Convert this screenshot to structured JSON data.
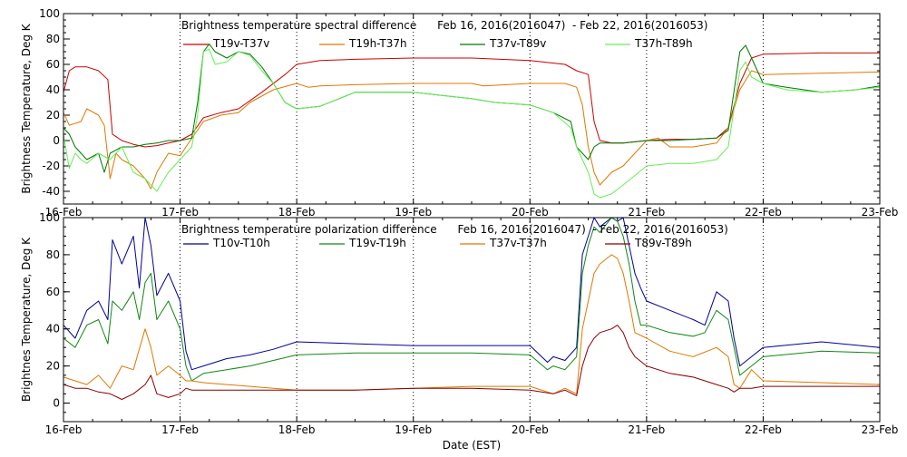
{
  "x_axis_label": "Date (EST)",
  "chart_data": [
    {
      "type": "line",
      "title": "Brightness temperature spectral difference      Feb 16, 2016(2016047)  - Feb 22, 2016(2016053)",
      "ylabel": "Brightness Temperature, Deg K",
      "xlabel": "Date (EST)",
      "xlim": [
        0,
        7
      ],
      "ylim": [
        -50,
        100
      ],
      "yticks": [
        -40,
        -20,
        0,
        20,
        40,
        60,
        80,
        100
      ],
      "x_tick_labels": [
        "16-Feb",
        "17-Feb",
        "18-Feb",
        "19-Feb",
        "20-Feb",
        "21-Feb",
        "22-Feb",
        "23-Feb"
      ],
      "grid": true,
      "legend_location": "top",
      "series": [
        {
          "name": "T19v-T37v",
          "color": "#cc0000",
          "x": [
            0,
            0.05,
            0.1,
            0.2,
            0.3,
            0.38,
            0.42,
            0.5,
            0.6,
            0.7,
            0.8,
            0.9,
            1.0,
            1.1,
            1.2,
            1.35,
            1.5,
            1.7,
            1.9,
            2.0,
            2.2,
            2.5,
            3.0,
            3.5,
            4.0,
            4.3,
            4.4,
            4.5,
            4.55,
            4.6,
            4.7,
            4.8,
            5.0,
            5.2,
            5.4,
            5.6,
            5.7,
            5.8,
            5.9,
            6.0,
            6.5,
            7.0
          ],
          "y": [
            38,
            55,
            58,
            58,
            55,
            48,
            5,
            0,
            -3,
            -5,
            -4,
            -2,
            0,
            5,
            18,
            22,
            25,
            38,
            52,
            60,
            63,
            64,
            65,
            65,
            63,
            60,
            55,
            52,
            15,
            0,
            -2,
            -2,
            0,
            1,
            1,
            2,
            10,
            45,
            65,
            68,
            69,
            69
          ]
        },
        {
          "name": "T19h-T37h",
          "color": "#e07800",
          "x": [
            0,
            0.05,
            0.15,
            0.2,
            0.3,
            0.35,
            0.4,
            0.45,
            0.5,
            0.6,
            0.7,
            0.75,
            0.8,
            0.9,
            1.0,
            1.05,
            1.2,
            1.35,
            1.5,
            1.6,
            1.8,
            2.0,
            2.1,
            2.2,
            2.5,
            3.0,
            3.5,
            3.6,
            4.0,
            4.3,
            4.4,
            4.45,
            4.5,
            4.55,
            4.6,
            4.7,
            4.8,
            5.0,
            5.1,
            5.2,
            5.4,
            5.6,
            5.7,
            5.8,
            5.9,
            6.0,
            6.5,
            7.0
          ],
          "y": [
            22,
            12,
            15,
            25,
            20,
            12,
            -30,
            -10,
            -15,
            -20,
            -30,
            -38,
            -25,
            -10,
            -12,
            -5,
            15,
            20,
            22,
            30,
            40,
            45,
            42,
            43,
            44,
            45,
            45,
            43,
            45,
            45,
            42,
            28,
            -5,
            -25,
            -35,
            -25,
            -20,
            0,
            2,
            -5,
            -5,
            -2,
            10,
            40,
            55,
            52,
            53,
            54
          ]
        },
        {
          "name": "T37v-T89v",
          "color": "#007700",
          "x": [
            0,
            0.05,
            0.1,
            0.15,
            0.2,
            0.3,
            0.35,
            0.4,
            0.5,
            0.6,
            0.7,
            0.8,
            0.9,
            1.0,
            1.1,
            1.15,
            1.2,
            1.25,
            1.3,
            1.4,
            1.5,
            1.6,
            1.7,
            1.8,
            1.9,
            2.0,
            2.2,
            2.5,
            3.0,
            3.5,
            3.7,
            4.0,
            4.2,
            4.35,
            4.4,
            4.45,
            4.5,
            4.55,
            4.6,
            4.8,
            5.0,
            5.2,
            5.4,
            5.6,
            5.7,
            5.8,
            5.85,
            5.9,
            6.0,
            6.2,
            6.5,
            6.8,
            7.0
          ],
          "y": [
            10,
            5,
            -5,
            -10,
            -15,
            -10,
            -25,
            -10,
            -5,
            -5,
            -3,
            -2,
            0,
            0,
            2,
            30,
            70,
            76,
            70,
            65,
            70,
            68,
            58,
            45,
            30,
            25,
            27,
            38,
            38,
            33,
            30,
            28,
            22,
            15,
            -5,
            -10,
            -15,
            -5,
            -2,
            -2,
            0,
            0,
            1,
            2,
            8,
            70,
            75,
            65,
            45,
            42,
            38,
            40,
            43
          ]
        },
        {
          "name": "T37h-T89h",
          "color": "#66ee55",
          "x": [
            0,
            0.05,
            0.1,
            0.15,
            0.2,
            0.3,
            0.4,
            0.5,
            0.6,
            0.7,
            0.8,
            0.9,
            1.0,
            1.1,
            1.15,
            1.2,
            1.25,
            1.3,
            1.4,
            1.5,
            1.6,
            1.7,
            1.8,
            1.9,
            2.0,
            2.2,
            2.5,
            3.0,
            3.5,
            3.7,
            4.0,
            4.2,
            4.35,
            4.4,
            4.45,
            4.5,
            4.55,
            4.6,
            4.7,
            4.8,
            5.0,
            5.2,
            5.4,
            5.6,
            5.7,
            5.8,
            5.85,
            5.9,
            6.0,
            6.2,
            6.5,
            6.8,
            7.0
          ],
          "y": [
            5,
            -22,
            -10,
            -15,
            -18,
            -10,
            -15,
            -5,
            -25,
            -30,
            -40,
            -25,
            -15,
            -5,
            20,
            70,
            72,
            60,
            62,
            70,
            67,
            55,
            45,
            30,
            25,
            27,
            38,
            38,
            33,
            30,
            28,
            22,
            10,
            -5,
            -15,
            -25,
            -42,
            -45,
            -42,
            -35,
            -20,
            -18,
            -18,
            -15,
            -5,
            55,
            62,
            50,
            45,
            40,
            38,
            40,
            42
          ]
        }
      ]
    },
    {
      "type": "line",
      "title": "Brightness temperature polarization difference      Feb 16, 2016(2016047)  - Feb 22, 2016(2016053)",
      "ylabel": "Brightnes Temperature, Deg K",
      "xlabel": "Date (EST)",
      "xlim": [
        0,
        7
      ],
      "ylim": [
        -10,
        100
      ],
      "yticks": [
        0,
        20,
        40,
        60,
        80,
        100
      ],
      "x_tick_labels": [
        "16-Feb",
        "17-Feb",
        "18-Feb",
        "19-Feb",
        "20-Feb",
        "21-Feb",
        "22-Feb",
        "23-Feb"
      ],
      "grid": true,
      "legend_location": "top",
      "series": [
        {
          "name": "T10v-T10h",
          "color": "#000099",
          "x": [
            0,
            0.1,
            0.2,
            0.3,
            0.38,
            0.42,
            0.5,
            0.6,
            0.65,
            0.7,
            0.75,
            0.8,
            0.9,
            1.0,
            1.05,
            1.1,
            1.2,
            1.4,
            1.6,
            1.8,
            2.0,
            2.5,
            3.0,
            3.5,
            4.0,
            4.15,
            4.2,
            4.3,
            4.4,
            4.45,
            4.5,
            4.55,
            4.6,
            4.7,
            4.75,
            4.8,
            4.85,
            4.9,
            4.95,
            5.0,
            5.2,
            5.4,
            5.5,
            5.6,
            5.7,
            5.75,
            5.8,
            5.9,
            6.0,
            6.5,
            7.0
          ],
          "y": [
            42,
            35,
            50,
            55,
            45,
            88,
            75,
            90,
            62,
            100,
            85,
            58,
            70,
            55,
            28,
            18,
            20,
            24,
            26,
            29,
            33,
            32,
            31,
            31,
            31,
            22,
            25,
            23,
            30,
            80,
            90,
            100,
            95,
            100,
            98,
            100,
            85,
            70,
            62,
            55,
            50,
            45,
            42,
            60,
            55,
            35,
            20,
            25,
            30,
            33,
            30
          ]
        },
        {
          "name": "T19v-T19h",
          "color": "#118811",
          "x": [
            0,
            0.1,
            0.2,
            0.3,
            0.38,
            0.42,
            0.5,
            0.6,
            0.65,
            0.7,
            0.75,
            0.8,
            0.9,
            1.0,
            1.05,
            1.1,
            1.2,
            1.4,
            1.6,
            1.8,
            2.0,
            2.5,
            3.0,
            3.5,
            4.0,
            4.15,
            4.2,
            4.3,
            4.4,
            4.45,
            4.5,
            4.55,
            4.6,
            4.7,
            4.75,
            4.8,
            4.85,
            4.9,
            4.95,
            5.0,
            5.2,
            5.4,
            5.5,
            5.6,
            5.7,
            5.75,
            5.8,
            5.9,
            6.0,
            6.5,
            7.0
          ],
          "y": [
            35,
            30,
            42,
            45,
            32,
            55,
            50,
            60,
            45,
            65,
            70,
            45,
            55,
            40,
            20,
            12,
            16,
            18,
            20,
            23,
            26,
            27,
            27,
            27,
            26,
            18,
            20,
            18,
            25,
            70,
            85,
            95,
            92,
            100,
            98,
            90,
            75,
            55,
            42,
            42,
            38,
            36,
            38,
            50,
            45,
            30,
            15,
            20,
            25,
            28,
            27
          ]
        },
        {
          "name": "T37v-T37h",
          "color": "#e07800",
          "x": [
            0,
            0.1,
            0.2,
            0.3,
            0.4,
            0.5,
            0.6,
            0.7,
            0.75,
            0.8,
            0.9,
            1.0,
            1.05,
            1.1,
            1.2,
            1.4,
            1.6,
            1.8,
            2.0,
            2.5,
            3.0,
            3.5,
            4.0,
            4.2,
            4.3,
            4.4,
            4.45,
            4.5,
            4.55,
            4.6,
            4.7,
            4.75,
            4.8,
            4.85,
            4.9,
            5.0,
            5.2,
            5.4,
            5.6,
            5.7,
            5.75,
            5.8,
            5.9,
            6.0,
            6.5,
            7.0
          ],
          "y": [
            14,
            12,
            10,
            15,
            8,
            20,
            18,
            40,
            30,
            15,
            20,
            15,
            12,
            12,
            11,
            10,
            9,
            8,
            7,
            7,
            8,
            9,
            9,
            5,
            8,
            5,
            40,
            55,
            70,
            75,
            80,
            78,
            70,
            55,
            38,
            35,
            28,
            25,
            30,
            25,
            10,
            8,
            18,
            12,
            11,
            10
          ]
        },
        {
          "name": "T89v-T89h",
          "color": "#880000",
          "x": [
            0,
            0.1,
            0.2,
            0.3,
            0.4,
            0.5,
            0.6,
            0.7,
            0.75,
            0.8,
            0.9,
            1.0,
            1.05,
            1.1,
            1.2,
            1.4,
            1.6,
            1.8,
            2.0,
            2.5,
            3.0,
            3.5,
            4.0,
            4.2,
            4.3,
            4.4,
            4.45,
            4.5,
            4.55,
            4.6,
            4.7,
            4.75,
            4.8,
            4.85,
            4.9,
            5.0,
            5.2,
            5.4,
            5.6,
            5.7,
            5.75,
            5.8,
            5.9,
            6.0,
            6.5,
            7.0
          ],
          "y": [
            10,
            8,
            8,
            6,
            5,
            2,
            5,
            10,
            15,
            5,
            3,
            5,
            8,
            7,
            7,
            7,
            7,
            7,
            7,
            7,
            8,
            8,
            7,
            5,
            7,
            4,
            20,
            30,
            35,
            38,
            40,
            42,
            38,
            30,
            25,
            20,
            16,
            14,
            10,
            8,
            6,
            8,
            8,
            9,
            9,
            9
          ]
        }
      ]
    }
  ]
}
